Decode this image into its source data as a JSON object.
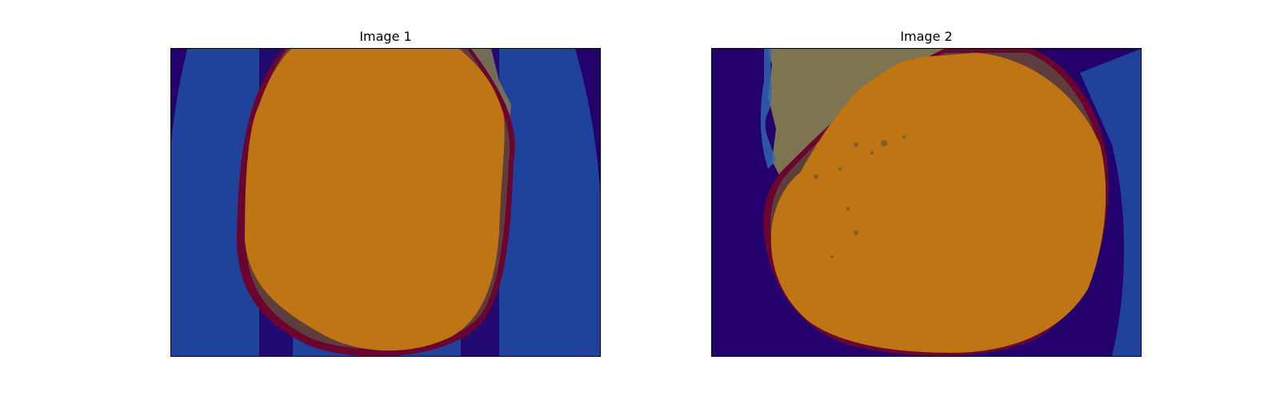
{
  "figure": {
    "panels": [
      {
        "title": "Image 1"
      },
      {
        "title": "Image 2"
      }
    ]
  },
  "colors": {
    "background_dark": "#23006b",
    "tissue_blue": "#1f4da3",
    "tissue_blue_edge": "#2f6ab0",
    "mask_orange": "#bf7514",
    "mask_dark_red": "#6b0530",
    "mask_overlap": "#5e3d3d",
    "tissue_khaki": "#7d7452"
  }
}
